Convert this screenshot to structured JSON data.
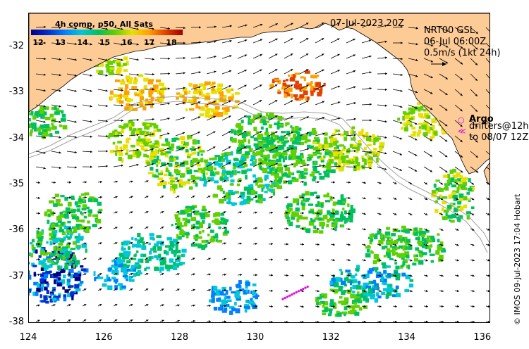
{
  "title": {
    "date": "07-Jul-2023 20Z",
    "product": "4h comp, p50, All Sats"
  },
  "colorbar": {
    "ticks": [
      "12",
      "13",
      "14",
      "15",
      "16",
      "17",
      "18"
    ],
    "colors": [
      "#00008b",
      "#0030d0",
      "#0080ff",
      "#00c8d8",
      "#00c060",
      "#60d000",
      "#e8e000",
      "#ffa000",
      "#e04000",
      "#a00000"
    ]
  },
  "currents": {
    "line1": "NRT00 GSL",
    "line2": "06-Jul 06:00Z",
    "scale": "0.5m/s (1kt 24h)"
  },
  "legend": {
    "argo": "Argo",
    "drifters1": "drifters@12h",
    "drifters2": "to 08/07 12Z",
    "argo_color": "#e000e0"
  },
  "axes": {
    "lat_labels": [
      "-32",
      "-33",
      "-34",
      "-35",
      "-36",
      "-37",
      "-38"
    ],
    "lon_labels": [
      "124",
      "126",
      "128",
      "130",
      "132",
      "134",
      "136"
    ]
  },
  "credit": "© IMOS 09-Jul-2023 17:04 Hobart",
  "colors": {
    "land": "#fdcb96",
    "bathy": "#a0a0a0"
  }
}
